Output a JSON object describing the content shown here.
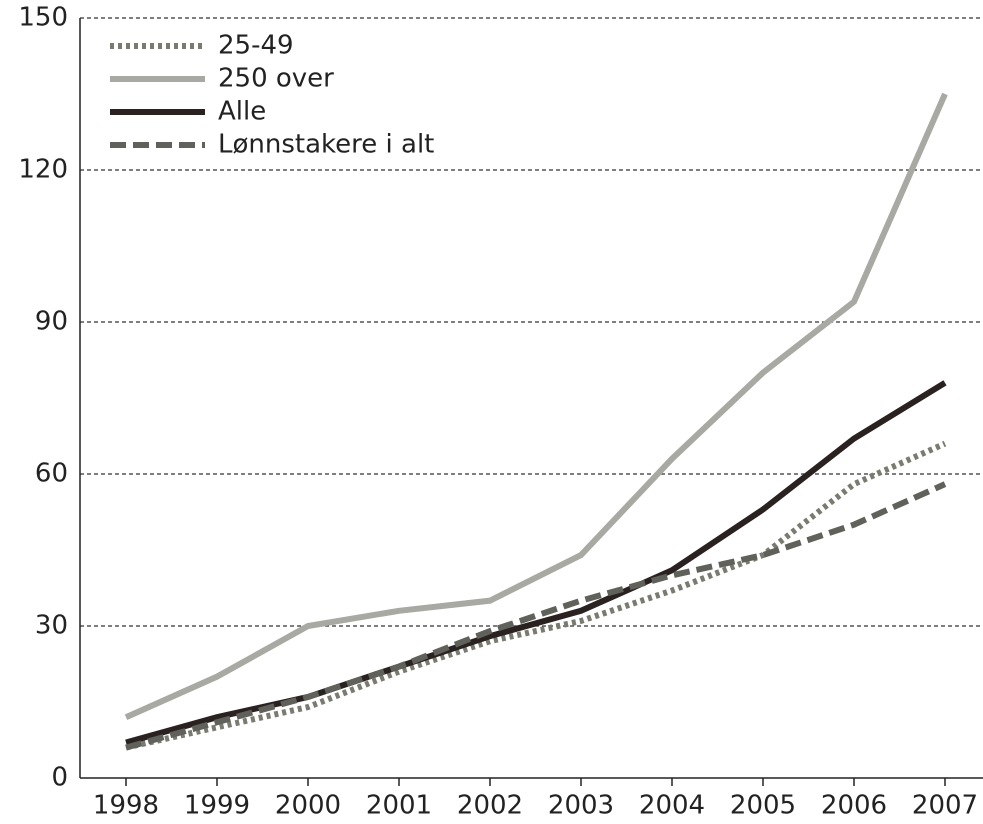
{
  "chart_data": {
    "type": "line",
    "categories": [
      "1998",
      "1999",
      "2000",
      "2001",
      "2002",
      "2003",
      "2004",
      "2005",
      "2006",
      "2007"
    ],
    "series": [
      {
        "name": "25-49",
        "color": "#7a7b70",
        "dash": "dotted",
        "values": [
          6,
          10,
          14,
          21,
          27,
          31,
          37,
          44,
          58,
          66
        ]
      },
      {
        "name": "250 over",
        "color": "#a7a9a2",
        "dash": "solid",
        "values": [
          12,
          20,
          30,
          33,
          35,
          44,
          63,
          80,
          94,
          135
        ]
      },
      {
        "name": "Alle",
        "color": "#2a2220",
        "dash": "solid",
        "values": [
          7,
          12,
          16,
          22,
          28,
          33,
          41,
          53,
          67,
          78
        ]
      },
      {
        "name": "Lønnstakere i alt",
        "color": "#5f615a",
        "dash": "dashed",
        "values": [
          6,
          11,
          16,
          22,
          29,
          35,
          40,
          44,
          50,
          58
        ]
      }
    ],
    "ylim": [
      0,
      150
    ],
    "yticks": [
      0,
      30,
      60,
      90,
      120,
      150
    ],
    "grid": true,
    "legend": "top-left"
  }
}
